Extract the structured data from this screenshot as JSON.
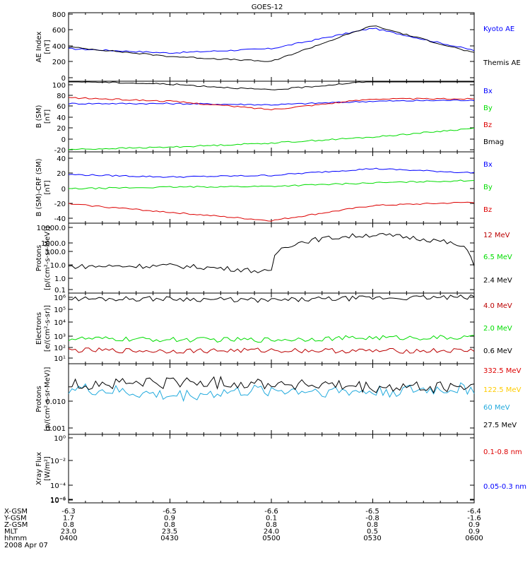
{
  "title": "GOES-12",
  "date_label": "2008 Apr 07",
  "colors": {
    "black": "#000000",
    "blue": "#0000ff",
    "green": "#00dd00",
    "red": "#dd0000",
    "darkred": "#bb0000",
    "cyan": "#22aadd",
    "yellow": "#ffcc00"
  },
  "x_axis": {
    "row_labels": [
      "X-GSM",
      "Y-GSM",
      "Z-GSM",
      "MLT",
      "hhmm"
    ],
    "columns": [
      {
        "vals": [
          "-6.3",
          "1.7",
          "0.8",
          "23.0",
          "0400"
        ]
      },
      {
        "vals": [
          "-6.5",
          "0.9",
          "0.8",
          "23.5",
          "0430"
        ]
      },
      {
        "vals": [
          "-6.6",
          "0.1",
          "0.8",
          "24.0",
          "0500"
        ]
      },
      {
        "vals": [
          "-6.5",
          "-0.8",
          "0.8",
          "0.5",
          "0530"
        ]
      },
      {
        "vals": [
          "-6.4",
          "-1.6",
          "0.9",
          "0.9",
          "0600"
        ]
      }
    ]
  },
  "panels": [
    {
      "ylabel": [
        "AE Index",
        "[nT]"
      ],
      "ticks": [
        "800",
        "600",
        "400",
        "200",
        "0"
      ],
      "legend": [
        {
          "label": "Kyoto AE",
          "color": "blue"
        },
        {
          "label": "Themis AE",
          "color": "black"
        }
      ]
    },
    {
      "ylabel": [
        "B (SM)",
        "[nT]"
      ],
      "ticks": [
        "100",
        "80",
        "60",
        "40",
        "20",
        "0",
        "-20"
      ],
      "legend": [
        {
          "label": "Bx",
          "color": "blue"
        },
        {
          "label": "By",
          "color": "green"
        },
        {
          "label": "Bz",
          "color": "red"
        },
        {
          "label": "Bmag",
          "color": "black"
        }
      ]
    },
    {
      "ylabel": [
        "B (SM)-CRF (SM)",
        "[nT]"
      ],
      "ticks": [
        "40",
        "20",
        "0",
        "-20",
        "-40"
      ],
      "legend": [
        {
          "label": "Bx",
          "color": "blue"
        },
        {
          "label": "By",
          "color": "green"
        },
        {
          "label": "Bz",
          "color": "red"
        }
      ]
    },
    {
      "ylabel": [
        "Protons",
        "[p/(cm²-s-sr-MeV)]"
      ],
      "ticks": [
        "10000.0",
        "1000.0",
        "100.0",
        "10.0",
        "1.0",
        "0.1"
      ],
      "legend": [
        {
          "label": "12 MeV",
          "color": "darkred"
        },
        {
          "label": "6.5 MeV",
          "color": "green"
        },
        {
          "label": "2.4 MeV",
          "color": "black"
        }
      ]
    },
    {
      "ylabel": [
        "Electrons",
        "[e/(cm²-s-sr)]"
      ],
      "ticks": [
        "10⁶",
        "10⁵",
        "10⁴",
        "10³",
        "10²",
        "10¹"
      ],
      "legend": [
        {
          "label": "4.0 MeV",
          "color": "darkred"
        },
        {
          "label": "2.0 MeV",
          "color": "green"
        },
        {
          "label": "0.6 MeV",
          "color": "black"
        }
      ]
    },
    {
      "ylabel": [
        "Protons",
        "[p/(cm²-s-sr-MeV)]"
      ],
      "ticks": [
        "0.010",
        "0.001"
      ],
      "legend": [
        {
          "label": "332.5 MeV",
          "color": "red"
        },
        {
          "label": "122.5 MeV",
          "color": "yellow"
        },
        {
          "label": "60 MeV",
          "color": "cyan"
        },
        {
          "label": "27.5 MeV",
          "color": "black"
        }
      ]
    },
    {
      "ylabel": [
        "Xray Flux",
        "[W/m²]"
      ],
      "ticks": [
        "10⁰",
        "10⁻²",
        "10⁻⁴",
        "10⁻⁶",
        "10⁻⁸"
      ],
      "legend": [
        {
          "label": "0.1-0.8 nm",
          "color": "red"
        },
        {
          "label": "0.05-0.3 nm",
          "color": "blue"
        }
      ]
    }
  ],
  "chart_data": [
    {
      "type": "line",
      "title": "GOES-12",
      "ylabel": "AE Index [nT]",
      "ylim": [
        0,
        800
      ],
      "x": [
        "0400",
        "0430",
        "0500",
        "0530",
        "0600"
      ],
      "series": [
        {
          "name": "Kyoto AE",
          "color": "blue",
          "values": [
            380,
            330,
            380,
            620,
            360
          ]
        },
        {
          "name": "Themis AE",
          "color": "black",
          "values": [
            400,
            290,
            230,
            650,
            330
          ]
        }
      ]
    },
    {
      "type": "line",
      "ylabel": "B (SM) [nT]",
      "ylim": [
        -20,
        100
      ],
      "x": [
        "0400",
        "0430",
        "0500",
        "0530",
        "0600"
      ],
      "series": [
        {
          "name": "Bx",
          "color": "blue",
          "values": [
            62,
            62,
            60,
            66,
            68
          ]
        },
        {
          "name": "By",
          "color": "green",
          "values": [
            -16,
            -12,
            -5,
            5,
            20
          ]
        },
        {
          "name": "Bz",
          "color": "red",
          "values": [
            72,
            66,
            52,
            70,
            70
          ]
        },
        {
          "name": "Bmag",
          "color": "black",
          "values": [
            100,
            95,
            85,
            100,
            103
          ]
        }
      ]
    },
    {
      "type": "line",
      "ylabel": "B (SM)-CRF (SM) [nT]",
      "ylim": [
        -45,
        40
      ],
      "x": [
        "0400",
        "0430",
        "0500",
        "0530",
        "0600"
      ],
      "series": [
        {
          "name": "Bx",
          "color": "blue",
          "values": [
            13,
            10,
            12,
            20,
            15
          ]
        },
        {
          "name": "By",
          "color": "green",
          "values": [
            -4,
            -2,
            -1,
            3,
            6
          ]
        },
        {
          "name": "Bz",
          "color": "red",
          "values": [
            -22,
            -32,
            -42,
            -24,
            -20
          ]
        }
      ]
    },
    {
      "type": "line",
      "ylabel": "Protons [p/(cm2-s-sr-MeV)]",
      "yscale": "log",
      "ylim": [
        0.1,
        10000
      ],
      "x": [
        "0400",
        "0430",
        "0500",
        "0530",
        "0600"
      ],
      "series": [
        {
          "name": "2.4 MeV",
          "color": "black",
          "values": [
            8,
            9,
            3,
            1500,
            8
          ]
        }
      ]
    },
    {
      "type": "line",
      "ylabel": "Electrons [e/(cm2-s-sr)]",
      "yscale": "log",
      "ylim": [
        10,
        1000000
      ],
      "x": [
        "0400",
        "0430",
        "0500",
        "0530",
        "0600"
      ],
      "series": [
        {
          "name": "4.0 MeV",
          "color": "darkred",
          "values": [
            90,
            80,
            90,
            80,
            85
          ]
        },
        {
          "name": "2.0 MeV",
          "color": "green",
          "values": [
            600,
            500,
            500,
            700,
            700
          ]
        },
        {
          "name": "0.6 MeV",
          "color": "black",
          "values": [
            400000,
            400000,
            300000,
            450000,
            500000
          ]
        }
      ]
    },
    {
      "type": "line",
      "ylabel": "Protons [p/(cm2-s-sr-MeV)]",
      "yscale": "log",
      "ylim": [
        0.001,
        0.1
      ],
      "x": [
        "0400",
        "0430",
        "0500",
        "0530",
        "0600"
      ],
      "series": [
        {
          "name": "60 MeV",
          "color": "cyan",
          "values": [
            0.02,
            0.012,
            0.018,
            0.016,
            0.02
          ]
        },
        {
          "name": "27.5 MeV",
          "color": "black",
          "values": [
            0.025,
            0.03,
            0.028,
            0.02,
            0.022
          ]
        }
      ]
    },
    {
      "type": "line",
      "ylabel": "Xray Flux [W/m2]",
      "yscale": "log",
      "ylim": [
        1e-09,
        1
      ],
      "x": [
        "0400",
        "0430",
        "0500",
        "0530",
        "0600"
      ],
      "series": []
    }
  ]
}
